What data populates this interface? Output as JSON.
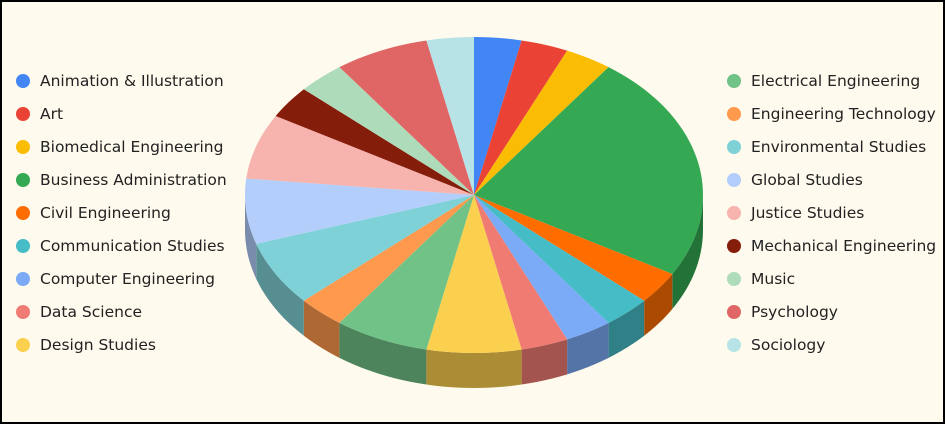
{
  "chart_data": {
    "type": "pie",
    "style": "3d",
    "legend_placement": "left-and-right",
    "categories": [
      "Animation & Illustration",
      "Art",
      "Biomedical Engineering",
      "Business Administration",
      "Civil Engineering",
      "Communication Studies",
      "Computer Engineering",
      "Data Science",
      "Design Studies",
      "Electrical Engineering",
      "Engineering Technology",
      "Environmental Studies",
      "Global Studies",
      "Justice Studies",
      "Mechanical Engineering",
      "Music",
      "Psychology",
      "Sociology"
    ],
    "values": [
      1,
      1,
      1,
      7,
      1,
      1,
      1,
      1,
      2,
      2,
      1,
      2,
      2,
      2,
      1,
      1,
      2,
      1
    ],
    "colors": [
      "#4285F4",
      "#EA4335",
      "#FBBC04",
      "#34A853",
      "#FF6D01",
      "#46BDC6",
      "#7BAAF7",
      "#F07B72",
      "#FCD04F",
      "#71C287",
      "#FF994D",
      "#7ED1D7",
      "#B3CEFB",
      "#F7B4AE",
      "#851D0B",
      "#AEDCBA",
      "#E06666",
      "#B7E3E7"
    ]
  }
}
